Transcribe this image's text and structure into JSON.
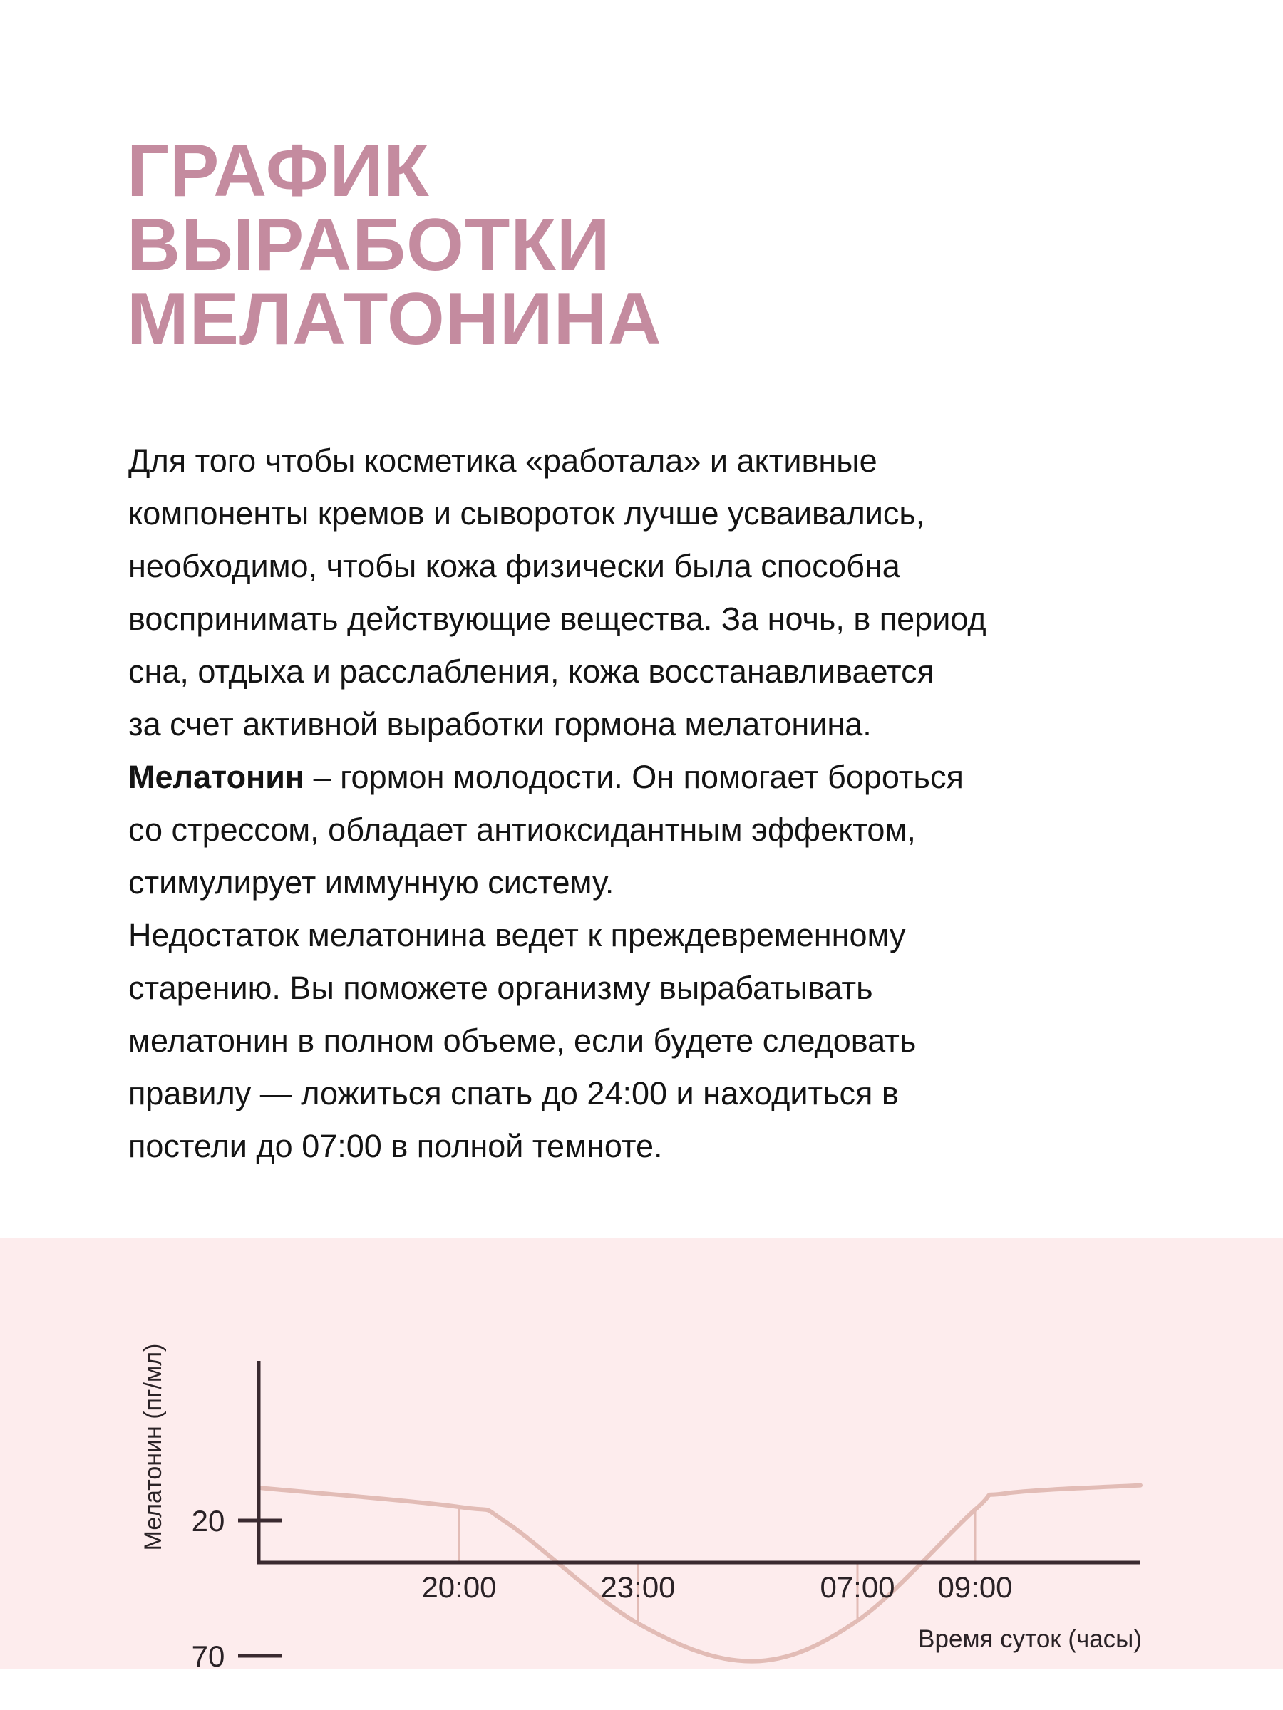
{
  "title_lines": [
    "ГРАФИК",
    "ВЫРАБОТКИ",
    "МЕЛАТОНИНА"
  ],
  "body_lines": [
    {
      "text": "Для того чтобы косметика «работала» и активные"
    },
    {
      "text": "компоненты кремов и сывороток лучше усваивались,"
    },
    {
      "text": "необходимо, чтобы кожа физически была способна"
    },
    {
      "text": "воспринимать действующие вещества. За ночь, в период"
    },
    {
      "text": "сна, отдыха и расслабления, кожа восстанавливается"
    },
    {
      "text": "за счет активной выработки гормона мелатонина."
    },
    {
      "bold": "Мелатонин",
      "text": " – гормон молодости. Он помогает бороться"
    },
    {
      "text": "со стрессом, обладает антиоксидантным эффектом,"
    },
    {
      "text": "стимулирует иммунную систему."
    },
    {
      "text": "Недостаток мелатонина ведет к преждевременному"
    },
    {
      "text": "старению. Вы поможете организму вырабатывать"
    },
    {
      "text": "мелатонин в полном объеме, если будете следовать"
    },
    {
      "text": "правилу — ложиться спать до 24:00 и находиться в"
    },
    {
      "text": "постели до 07:00 в полной темноте."
    }
  ],
  "colors": {
    "title": "#c48b9f",
    "band": "#fdeced",
    "curve": "#e2bcb6",
    "axis": "#3a2a30"
  },
  "chart_data": {
    "type": "line",
    "xlabel": "Время суток (часы)",
    "ylabel": "Мелатонин (пг/мл)",
    "x_ticks": [
      "20:00",
      "23:00",
      "07:00",
      "09:00"
    ],
    "y_ticks": [
      70,
      20
    ],
    "grid": false,
    "points": [
      {
        "x": null,
        "y": 8
      },
      {
        "x": "20:00",
        "y": 15
      },
      {
        "x": null,
        "y": 21
      },
      {
        "x": "23:00",
        "y": 58
      },
      {
        "x": null,
        "y": 72
      },
      {
        "x": "07:00",
        "y": 57
      },
      {
        "x": "09:00",
        "y": 16
      },
      {
        "x": null,
        "y": 10
      },
      {
        "x": null,
        "y": 7
      }
    ]
  }
}
